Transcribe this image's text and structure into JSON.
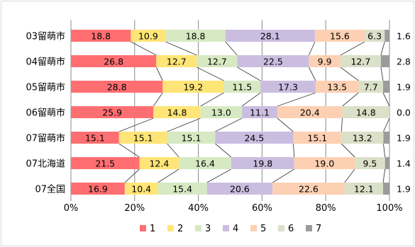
{
  "chart_data": {
    "type": "bar",
    "orientation": "horizontal",
    "stacked": "percent",
    "categories": [
      "03留萌市",
      "04留萌市",
      "05留萌市",
      "06留萌市",
      "07留萌市",
      "07北海道",
      "07全国"
    ],
    "series": [
      {
        "name": "1",
        "color": "#ff6f72",
        "values": [
          18.8,
          26.8,
          28.8,
          25.9,
          15.1,
          21.5,
          16.9
        ]
      },
      {
        "name": "2",
        "color": "#ffe577",
        "values": [
          10.9,
          12.7,
          19.2,
          14.8,
          15.1,
          12.4,
          10.4
        ]
      },
      {
        "name": "3",
        "color": "#d6e9c2",
        "values": [
          18.8,
          12.7,
          11.5,
          13.0,
          15.1,
          16.4,
          15.4
        ]
      },
      {
        "name": "4",
        "color": "#cbbde0",
        "values": [
          28.1,
          22.5,
          17.3,
          11.1,
          24.5,
          19.8,
          20.6
        ]
      },
      {
        "name": "5",
        "color": "#fdd0b3",
        "values": [
          15.6,
          9.9,
          13.5,
          20.4,
          15.1,
          19.0,
          22.6
        ]
      },
      {
        "name": "6",
        "color": "#dbe0c9",
        "values": [
          6.3,
          12.7,
          7.7,
          14.8,
          13.2,
          9.5,
          12.1
        ]
      },
      {
        "name": "7",
        "color": "#9b9b9b",
        "values": [
          1.6,
          2.8,
          1.9,
          0.0,
          1.9,
          1.4,
          1.9
        ]
      }
    ],
    "data_labels": [
      [
        "18.8",
        "10.9",
        "18.8",
        "28.1",
        "15.6",
        "6.3",
        "1.6"
      ],
      [
        "26.8",
        "12.7",
        "12.7",
        "22.5",
        "9.9",
        "12.7",
        "2.8"
      ],
      [
        "28.8",
        "19.2",
        "11.5",
        "17.3",
        "13.5",
        "7.7",
        "1.9"
      ],
      [
        "25.9",
        "14.8",
        "13.0",
        "11.1",
        "20.4",
        "14.8",
        "0.0"
      ],
      [
        "15.1",
        "15.1",
        "15.1",
        "24.5",
        "15.1",
        "13.2",
        "1.9"
      ],
      [
        "21.5",
        "12.4",
        "16.4",
        "19.8",
        "19.0",
        "9.5",
        "1.4"
      ],
      [
        "16.9",
        "10.4",
        "15.4",
        "20.6",
        "22.6",
        "12.1",
        "1.9"
      ]
    ],
    "xticks": [
      "0%",
      "20%",
      "40%",
      "60%",
      "80%",
      "100%"
    ],
    "xlim": [
      0,
      100
    ],
    "grid": true,
    "series_lines": true,
    "legend": "bottom",
    "title": "",
    "xlabel": "",
    "ylabel": ""
  }
}
